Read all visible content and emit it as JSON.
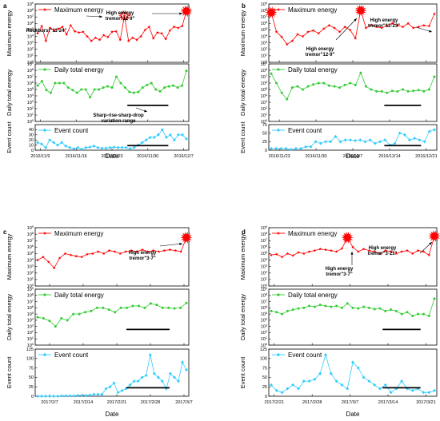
{
  "chart_data": [
    {
      "panel_label": "a",
      "type": "line",
      "xlabel": "Date",
      "x_ticks": [
        "2016/11/9",
        "2016/11/16",
        "2016/11/23",
        "2016/11/30",
        "2016/12/7"
      ],
      "x_start": "2016/11/8",
      "x_end": "2016/12/8",
      "subplots": [
        {
          "name": "Maximum energy",
          "ylabel": "Maximum energy",
          "color": "#ff0000",
          "marker": "star",
          "log": true,
          "ylim": [
            1,
            1000000000
          ],
          "y_ticks": [
            "10^0",
            "10^1",
            "10^2",
            "10^3",
            "10^4",
            "10^5",
            "10^6",
            "10^7",
            "10^8",
            "10^9"
          ],
          "values": [
            30000,
            400000,
            2000,
            200000,
            80000,
            150000,
            300000,
            20000,
            500000,
            60000,
            40000,
            50000,
            10000,
            2000,
            6000,
            3000,
            15000,
            8000,
            50000,
            60000,
            3000,
            15000000,
            2000,
            6000,
            3000,
            10000,
            100000,
            300000,
            5000,
            40000,
            30000,
            4000,
            80000,
            300000,
            200000,
            400000,
            80000000
          ]
        },
        {
          "name": "Daily total energy",
          "ylabel": "Daily total energy",
          "color": "#33cc33",
          "marker": "circle",
          "log": true,
          "ylim": [
            1,
            1000000000
          ],
          "y_ticks": [
            "10^0",
            "10^1",
            "10^2",
            "10^3",
            "10^4",
            "10^5",
            "10^6",
            "10^7",
            "10^8",
            "10^9"
          ],
          "values": [
            400000,
            2000000,
            80000,
            30000,
            1000000,
            1000000,
            1000000,
            200000,
            80000,
            30000,
            100000,
            100000,
            6000,
            100000,
            100000,
            200000,
            300000,
            200000,
            10000000,
            1000000,
            200000,
            40000,
            30000,
            40000,
            200000,
            500000,
            1000000,
            100000,
            50000,
            200000,
            300000,
            400000,
            200000,
            400000,
            80000000
          ]
        },
        {
          "name": "Event count",
          "ylabel": "Event count",
          "color": "#33ccff",
          "marker": "diamond",
          "log": false,
          "ylim": [
            0,
            50
          ],
          "y_ticks": [
            "0",
            "10",
            "20",
            "30",
            "40"
          ],
          "values": [
            15,
            12,
            5,
            20,
            15,
            10,
            15,
            8,
            5,
            3,
            5,
            2,
            5,
            6,
            8,
            5,
            4,
            4,
            5,
            6,
            5,
            5,
            5,
            3,
            5,
            10,
            15,
            20,
            25,
            25,
            30,
            40,
            25,
            30,
            20,
            30,
            30,
            22
          ]
        }
      ],
      "annotations": [
        {
          "text": "Rockburst\"11·24\""
        },
        {
          "text": "High energy tremor\"12·9\""
        },
        {
          "text": "Sharp-rise-sharp-drop variation range"
        }
      ],
      "ranges": [
        {
          "subplot": 1,
          "start": "2016/11/26",
          "end": "2016/12/4"
        },
        {
          "subplot": 2,
          "start": "2016/11/26",
          "end": "2016/12/4"
        }
      ]
    },
    {
      "panel_label": "b",
      "type": "line",
      "xlabel": "Date",
      "x_ticks": [
        "2016/11/23",
        "2016/11/30",
        "2016/12/7",
        "2016/12/14",
        "2016/12/21"
      ],
      "x_start": "2016/11/21",
      "x_end": "2016/12/23",
      "subplots": [
        {
          "name": "Maximum energy",
          "ylabel": "Maximum energy",
          "color": "#ff0000",
          "marker": "star",
          "log": true,
          "ylim": [
            1,
            1000000000
          ],
          "y_ticks": [
            "10^0",
            "10^1",
            "10^2",
            "10^3",
            "10^4",
            "10^5",
            "10^6",
            "10^7",
            "10^8",
            "10^9"
          ],
          "values": [
            50000000,
            50000,
            8000,
            600,
            2000,
            20000,
            10000,
            50000,
            80000,
            30000,
            150000,
            500000,
            200000,
            50000,
            300000,
            100000,
            5000,
            100000000,
            200000,
            600000,
            300000,
            200000,
            500000,
            1000000,
            500000,
            300000,
            1000000,
            200000,
            300000,
            500000,
            400000,
            30000000
          ]
        },
        {
          "name": "Daily total energy",
          "ylabel": "Daily total energy",
          "color": "#33cc33",
          "marker": "circle",
          "log": true,
          "ylim": [
            1,
            1000000000
          ],
          "y_ticks": [
            "10^0",
            "10^1",
            "10^2",
            "10^3",
            "10^4",
            "10^5",
            "10^6",
            "10^7",
            "10^8",
            "10^9"
          ],
          "values": [
            30000000,
            1000000,
            30000,
            3000,
            200000,
            300000,
            100000,
            300000,
            600000,
            1000000,
            1000000,
            400000,
            300000,
            200000,
            500000,
            1000000,
            500000,
            40000000,
            300000,
            100000,
            50000,
            50000,
            30000,
            60000,
            50000,
            100000,
            50000,
            60000,
            80000,
            50000,
            100000,
            10000000
          ]
        },
        {
          "name": "Event count",
          "ylabel": "Event count",
          "color": "#33ccff",
          "marker": "diamond",
          "log": false,
          "ylim": [
            0,
            75
          ],
          "y_ticks": [
            "0",
            "25",
            "50",
            "75"
          ],
          "values": [
            5,
            5,
            5,
            5,
            2,
            5,
            5,
            10,
            10,
            25,
            20,
            25,
            25,
            40,
            25,
            30,
            30,
            28,
            30,
            25,
            30,
            20,
            25,
            30,
            15,
            20,
            50,
            45,
            30,
            35,
            30,
            25,
            55,
            60
          ]
        }
      ],
      "annotations": [
        {
          "text": "High energy tremor\"12·9\""
        },
        {
          "text": "High energy tremor\"12·23\""
        }
      ],
      "ranges": [
        {
          "subplot": 1,
          "start": "2016/12/13",
          "end": "2016/12/20"
        },
        {
          "subplot": 2,
          "start": "2016/12/13",
          "end": "2016/12/20"
        }
      ]
    },
    {
      "panel_label": "c",
      "type": "line",
      "xlabel": "Date",
      "x_ticks": [
        "2017/2/7",
        "2017/2/14",
        "2017/2/21",
        "2017/2/28",
        "2017/3/7"
      ],
      "x_start": "2017/2/4",
      "x_end": "2017/3/8",
      "subplots": [
        {
          "name": "Maximum energy",
          "ylabel": "Maximum energy",
          "color": "#ff0000",
          "marker": "star",
          "log": true,
          "ylim": [
            1,
            1000000000
          ],
          "y_ticks": [
            "10^0",
            "10^1",
            "10^2",
            "10^3",
            "10^4",
            "10^5",
            "10^6",
            "10^7",
            "10^8",
            "10^9"
          ],
          "values": [
            10000,
            30000,
            5000,
            600,
            20000,
            100000,
            60000,
            40000,
            30000,
            80000,
            100000,
            200000,
            100000,
            300000,
            200000,
            100000,
            200000,
            300000,
            200000,
            400000,
            200000,
            300000,
            200000,
            300000,
            400000,
            300000,
            200000,
            30000000
          ]
        },
        {
          "name": "Daily total energy",
          "ylabel": "Daily total energy",
          "color": "#33cc33",
          "marker": "circle",
          "log": true,
          "ylim": [
            1,
            1000000000
          ],
          "y_ticks": [
            "10^0",
            "10^1",
            "10^2",
            "10^3",
            "10^4",
            "10^5",
            "10^6",
            "10^7",
            "10^8",
            "10^9"
          ],
          "values": [
            30000,
            20000,
            8000,
            1000,
            20000,
            10000,
            100000,
            100000,
            200000,
            300000,
            1000000,
            1000000,
            500000,
            200000,
            1000000,
            1000000,
            2000000,
            2000000,
            1000000,
            5000000,
            3000000,
            1000000,
            1000000,
            800000,
            1000000,
            6000000
          ]
        },
        {
          "name": "Event count",
          "ylabel": "Event count",
          "color": "#33ccff",
          "marker": "diamond",
          "log": false,
          "ylim": [
            0,
            125
          ],
          "y_ticks": [
            "0",
            "25",
            "50",
            "75",
            "100",
            "125"
          ],
          "values": [
            0,
            0,
            0,
            0,
            0,
            0,
            1,
            1,
            1,
            1,
            2,
            2,
            2,
            3,
            5,
            5,
            5,
            20,
            25,
            35,
            10,
            15,
            20,
            30,
            40,
            40,
            50,
            55,
            110,
            60,
            50,
            40,
            20,
            60,
            50,
            40,
            90,
            70
          ]
        }
      ],
      "annotations": [
        {
          "text": "High energy tremor\"3·7\""
        }
      ],
      "ranges": [
        {
          "subplot": 1,
          "start": "2017/2/23",
          "end": "2017/3/4"
        },
        {
          "subplot": 2,
          "start": "2017/2/23",
          "end": "2017/3/4"
        }
      ]
    },
    {
      "panel_label": "d",
      "type": "line",
      "xlabel": "Date",
      "x_ticks": [
        "2017/2/21",
        "2017/2/28",
        "2017/3/7",
        "2017/3/14",
        "2017/3/21"
      ],
      "x_start": "2017/2/20",
      "x_end": "2017/3/23",
      "subplots": [
        {
          "name": "Maximum energy",
          "ylabel": "Maximum energy",
          "color": "#ff0000",
          "marker": "star",
          "log": true,
          "ylim": [
            1,
            1000000000
          ],
          "y_ticks": [
            "10^0",
            "10^1",
            "10^2",
            "10^3",
            "10^4",
            "10^5",
            "10^6",
            "10^7",
            "10^8",
            "10^9"
          ],
          "values": [
            60000,
            80000,
            30000,
            100000,
            50000,
            150000,
            100000,
            200000,
            300000,
            500000,
            400000,
            300000,
            200000,
            600000,
            30000000,
            1000000,
            200000,
            500000,
            300000,
            200000,
            100000,
            300000,
            200000,
            100000,
            200000,
            300000,
            100000,
            300000,
            200000,
            60000,
            50000000
          ]
        },
        {
          "name": "Daily total energy",
          "ylabel": "Daily total energy",
          "color": "#33cc33",
          "marker": "circle",
          "log": true,
          "ylim": [
            1,
            1000000000
          ],
          "y_ticks": [
            "10^0",
            "10^1",
            "10^2",
            "10^3",
            "10^4",
            "10^5",
            "10^6",
            "10^7",
            "10^8",
            "10^9"
          ],
          "values": [
            300000,
            200000,
            100000,
            300000,
            500000,
            800000,
            1000000,
            2000000,
            1500000,
            3000000,
            2000000,
            1500000,
            2000000,
            1000000,
            5000000,
            1000000,
            800000,
            1500000,
            1000000,
            600000,
            800000,
            300000,
            500000,
            300000,
            100000,
            200000,
            50000,
            100000,
            100000,
            50000,
            30000000
          ]
        },
        {
          "name": "Event count",
          "ylabel": "Event count",
          "color": "#33ccff",
          "marker": "diamond",
          "log": false,
          "ylim": [
            0,
            125
          ],
          "y_ticks": [
            "0",
            "25",
            "50",
            "75",
            "100",
            "125"
          ],
          "values": [
            30,
            15,
            10,
            20,
            30,
            20,
            40,
            40,
            45,
            60,
            110,
            60,
            40,
            30,
            20,
            90,
            75,
            50,
            40,
            30,
            20,
            30,
            10,
            20,
            40,
            20,
            15,
            20,
            10,
            10,
            15
          ]
        }
      ],
      "annotations": [
        {
          "text": "High energy tremor\"3·7\""
        },
        {
          "text": "High energy tremor\"3·21\""
        }
      ],
      "ranges": [
        {
          "subplot": 1,
          "start": "2017/3/13",
          "end": "2017/3/20"
        },
        {
          "subplot": 2,
          "start": "2017/3/13",
          "end": "2017/3/20"
        }
      ]
    }
  ]
}
